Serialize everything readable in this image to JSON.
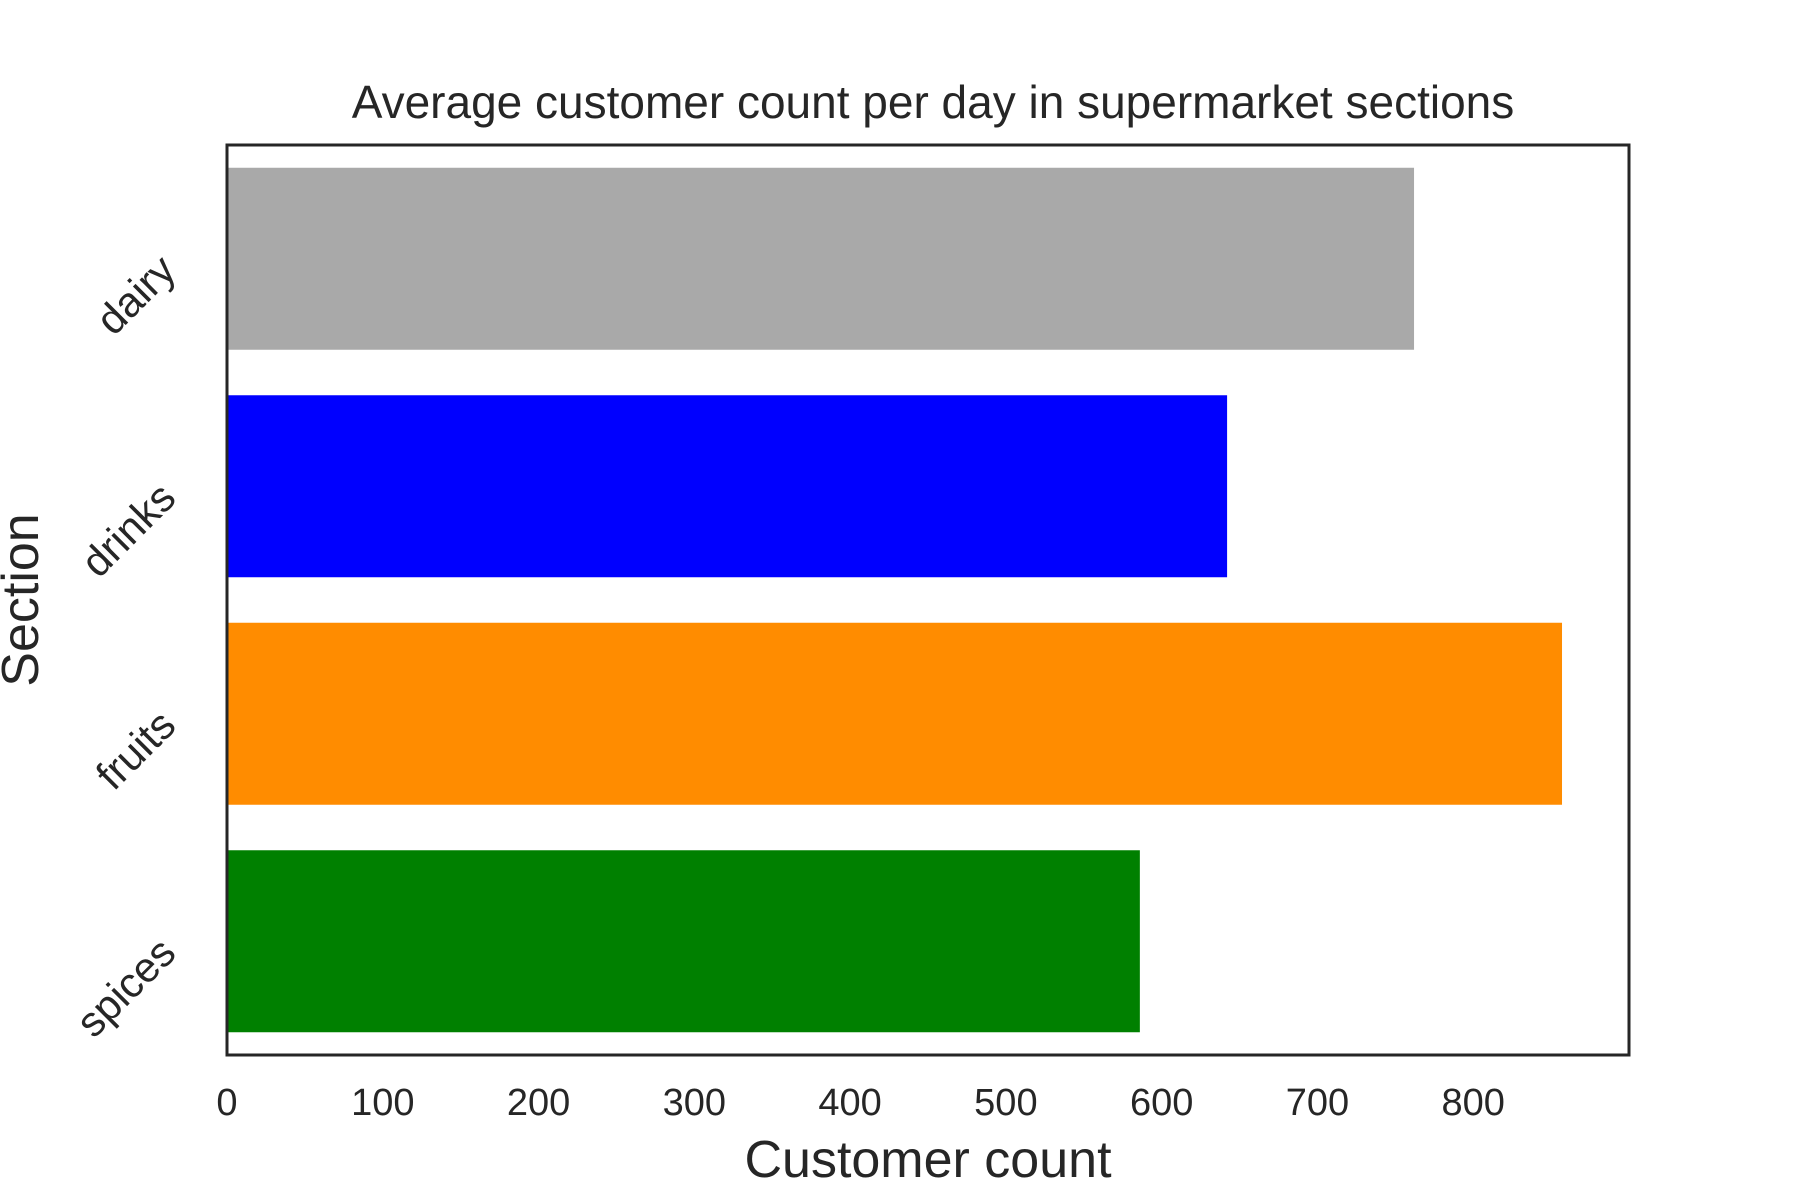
{
  "chart_data": {
    "type": "bar",
    "orientation": "horizontal",
    "title": "Average customer count per day in supermarket sections",
    "xlabel": "Customer count",
    "ylabel": "Section",
    "categories": [
      "dairy",
      "drinks",
      "fruits",
      "spices"
    ],
    "values": [
      762,
      642,
      857,
      586
    ],
    "colors": [
      "#a9a9a9",
      "#0000ff",
      "#ff8c00",
      "#008000"
    ],
    "xlim": [
      0,
      900
    ],
    "xticks": [
      0,
      100,
      200,
      300,
      400,
      500,
      600,
      700,
      800
    ],
    "grid": false,
    "legend": "none"
  },
  "style": {
    "frame_color": "#262626",
    "text_color": "#262626"
  }
}
